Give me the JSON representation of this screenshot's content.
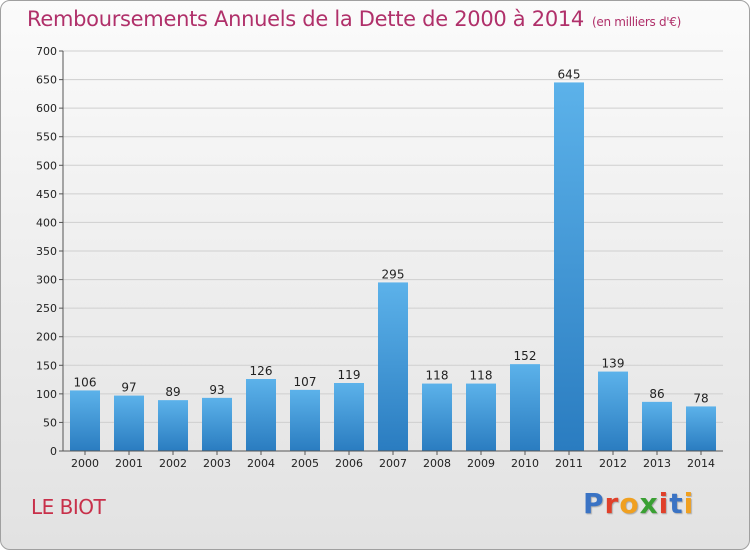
{
  "header": {
    "title": "Remboursements Annuels de la Dette de 2000 à 2014",
    "unit": "(en milliers d'€)"
  },
  "footer": {
    "commune": "LE BIOT",
    "logo_letters": [
      "P",
      "r",
      "o",
      "x",
      "i",
      "t",
      "i"
    ]
  },
  "colors": {
    "title": "#b0306a",
    "bar_top": "#5cb2ea",
    "bar_bottom": "#2a7cc0",
    "grid": "#cfcfcf",
    "logo": [
      "#3a73c4",
      "#e0402a",
      "#f0a020",
      "#3aa033",
      "#e0402a",
      "#3a73c4",
      "#f0a020"
    ]
  },
  "chart_data": {
    "type": "bar",
    "title": "Remboursements Annuels de la Dette de 2000 à 2014",
    "ylabel": "",
    "xlabel": "",
    "categories": [
      "2000",
      "2001",
      "2002",
      "2003",
      "2004",
      "2005",
      "2006",
      "2007",
      "2008",
      "2009",
      "2010",
      "2011",
      "2012",
      "2013",
      "2014"
    ],
    "values": [
      106,
      97,
      89,
      93,
      126,
      107,
      119,
      295,
      118,
      118,
      152,
      645,
      139,
      86,
      78
    ],
    "ylim": [
      0,
      700
    ],
    "yticks": [
      0,
      50,
      100,
      150,
      200,
      250,
      300,
      350,
      400,
      450,
      500,
      550,
      600,
      650,
      700
    ],
    "grid": true,
    "data_labels": true
  }
}
